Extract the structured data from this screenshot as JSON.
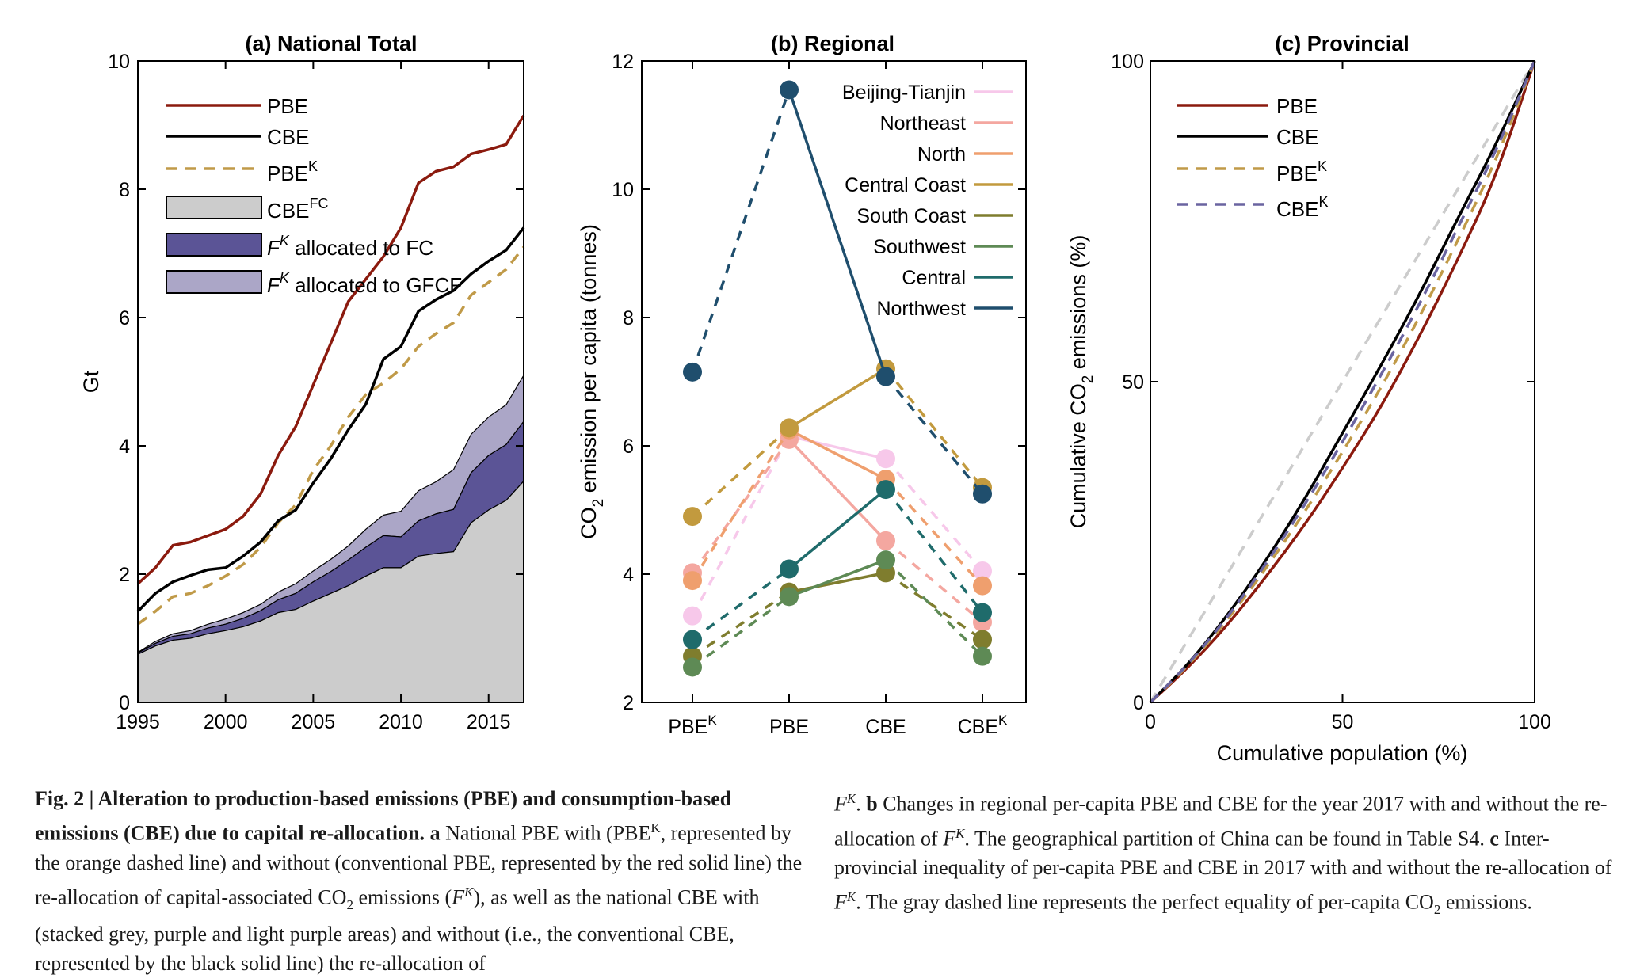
{
  "colors": {
    "pbe": "#8b1a0e",
    "cbe": "#000000",
    "pbek": "#c09a48",
    "cbefc": "#cccccc",
    "fk_fc": "#5b5496",
    "fk_gfcf": "#aba6c7",
    "cbek": "#6a64a0",
    "equality": "#cccccc"
  },
  "panel_a": {
    "title": "(a) National Total",
    "ylabel": "Gt",
    "legend": {
      "pbe": "PBE",
      "cbe": "CBE",
      "pbek": "PBE",
      "pbek_sup": "K",
      "cbefc": "CBE",
      "cbefc_sup": "FC",
      "fk_fc_f": "F",
      "fk_fc_sup": "K",
      "fk_fc_text": " allocated to FC",
      "fk_gfcf_f": "F",
      "fk_gfcf_sup": "K",
      "fk_gfcf_text": " allocated to GFCF"
    }
  },
  "panel_b": {
    "title": "(b) Regional",
    "ylabel_pre": "CO",
    "ylabel_sub": "2",
    "ylabel_post": " emission per capita (tonnes)"
  },
  "panel_c": {
    "title": "(c) Provincial",
    "xlabel": "Cumulative population (%)",
    "ylabel_pre": "Cumulative CO",
    "ylabel_sub": "2",
    "ylabel_post": " emissions (%)",
    "legend": {
      "pbe": "PBE",
      "cbe": "CBE",
      "pbek": "PBE",
      "pbek_sup": "K",
      "cbek": "CBE",
      "cbek_sup": "K"
    }
  },
  "chart_data": [
    {
      "type": "area",
      "title": "(a) National Total",
      "xlabel": "",
      "ylabel": "Gt",
      "xlim": [
        1995,
        2017
      ],
      "ylim": [
        0,
        10
      ],
      "xticks": [
        1995,
        2000,
        2005,
        2010,
        2015
      ],
      "yticks": [
        0,
        2,
        4,
        6,
        8,
        10
      ],
      "x": [
        1995,
        1996,
        1997,
        1998,
        1999,
        2000,
        2001,
        2002,
        2003,
        2004,
        2005,
        2006,
        2007,
        2008,
        2009,
        2010,
        2011,
        2012,
        2013,
        2014,
        2015,
        2016,
        2017
      ],
      "series": [
        {
          "name": "PBE",
          "style": "line",
          "values": [
            1.85,
            2.1,
            2.45,
            2.5,
            2.6,
            2.7,
            2.9,
            3.25,
            3.85,
            4.3,
            4.95,
            5.6,
            6.25,
            6.6,
            6.95,
            7.4,
            8.1,
            8.28,
            8.35,
            8.55,
            8.62,
            8.7,
            9.15
          ]
        },
        {
          "name": "CBE",
          "style": "line",
          "values": [
            1.42,
            1.7,
            1.88,
            1.98,
            2.07,
            2.1,
            2.28,
            2.5,
            2.83,
            3.0,
            3.42,
            3.8,
            4.25,
            4.65,
            5.35,
            5.55,
            6.1,
            6.28,
            6.42,
            6.68,
            6.88,
            7.05,
            7.4
          ]
        },
        {
          "name": "PBE^K",
          "style": "dashed",
          "values": [
            1.22,
            1.42,
            1.65,
            1.7,
            1.82,
            1.97,
            2.15,
            2.42,
            2.8,
            3.08,
            3.62,
            4.0,
            4.45,
            4.8,
            4.98,
            5.2,
            5.55,
            5.75,
            5.92,
            6.35,
            6.55,
            6.75,
            7.1
          ]
        },
        {
          "name": "CBE^FC",
          "style": "area",
          "values": [
            0.75,
            0.88,
            0.97,
            1.0,
            1.07,
            1.12,
            1.18,
            1.27,
            1.4,
            1.45,
            1.58,
            1.7,
            1.82,
            1.97,
            2.1,
            2.1,
            2.28,
            2.32,
            2.35,
            2.8,
            3.0,
            3.15,
            3.45
          ]
        },
        {
          "name": "F^K allocated to FC",
          "style": "area",
          "values": [
            0.02,
            0.04,
            0.06,
            0.07,
            0.09,
            0.1,
            0.13,
            0.16,
            0.2,
            0.25,
            0.3,
            0.34,
            0.4,
            0.45,
            0.5,
            0.48,
            0.55,
            0.62,
            0.66,
            0.78,
            0.85,
            0.87,
            0.93
          ]
        },
        {
          "name": "F^K allocated to GFCF",
          "style": "area",
          "values": [
            0.01,
            0.03,
            0.04,
            0.05,
            0.06,
            0.08,
            0.09,
            0.1,
            0.12,
            0.15,
            0.17,
            0.19,
            0.22,
            0.28,
            0.32,
            0.4,
            0.47,
            0.5,
            0.62,
            0.6,
            0.6,
            0.62,
            0.72
          ]
        }
      ]
    },
    {
      "type": "line",
      "title": "(b) Regional",
      "ylabel": "CO2 emission per capita (tonnes)",
      "categories": [
        "PBE",
        "PBE",
        "CBE",
        "CBE"
      ],
      "category_sups": [
        "K",
        "",
        "",
        "K"
      ],
      "ylim": [
        2,
        12
      ],
      "yticks": [
        2,
        4,
        6,
        8,
        10,
        12
      ],
      "segment_styles": [
        "dashed",
        "solid",
        "dashed"
      ],
      "series": [
        {
          "name": "Beijing-Tianjin",
          "color": "#f7c8ea",
          "values": [
            3.35,
            6.15,
            5.8,
            4.05
          ]
        },
        {
          "name": "Northeast",
          "color": "#f4a7a0",
          "values": [
            4.02,
            6.1,
            4.52,
            3.25
          ]
        },
        {
          "name": "North",
          "color": "#ef9f6e",
          "values": [
            3.9,
            6.25,
            5.48,
            3.82
          ]
        },
        {
          "name": "Central Coast",
          "color": "#c29a3e",
          "values": [
            4.9,
            6.28,
            7.2,
            5.35
          ]
        },
        {
          "name": "South Coast",
          "color": "#7f7d2e",
          "values": [
            2.72,
            3.72,
            4.02,
            2.98
          ]
        },
        {
          "name": "Southwest",
          "color": "#5e8a55",
          "values": [
            2.55,
            3.65,
            4.22,
            2.72
          ]
        },
        {
          "name": "Central",
          "color": "#1f6b6b",
          "values": [
            2.98,
            4.08,
            5.32,
            3.4
          ]
        },
        {
          "name": "Northwest",
          "color": "#1f4e6d",
          "values": [
            7.15,
            11.55,
            7.08,
            5.25
          ]
        }
      ]
    },
    {
      "type": "line",
      "title": "(c) Provincial",
      "xlabel": "Cumulative population (%)",
      "ylabel": "Cumulative CO2 emissions (%)",
      "xlim": [
        0,
        100
      ],
      "ylim": [
        0,
        100
      ],
      "xticks": [
        0,
        50,
        100
      ],
      "yticks": [
        0,
        50,
        100
      ],
      "x": [
        0,
        10,
        20,
        30,
        40,
        50,
        60,
        70,
        80,
        90,
        100
      ],
      "series": [
        {
          "name": "Equality",
          "style": "dashed",
          "values": [
            0,
            10,
            20,
            30,
            40,
            50,
            60,
            70,
            80,
            90,
            100
          ]
        },
        {
          "name": "PBE",
          "style": "solid",
          "values": [
            0,
            5.5,
            12,
            19.5,
            27.5,
            36.5,
            46,
            57,
            69,
            82,
            100
          ]
        },
        {
          "name": "CBE",
          "style": "solid",
          "values": [
            0,
            6,
            13.5,
            22,
            31.5,
            42,
            52.5,
            63.5,
            75.5,
            87,
            100
          ]
        },
        {
          "name": "PBE^K",
          "style": "dashed",
          "values": [
            0,
            5.8,
            12.8,
            20.8,
            29.5,
            39,
            49,
            60,
            72,
            84.5,
            100
          ]
        },
        {
          "name": "CBE^K",
          "style": "dashed",
          "values": [
            0,
            6,
            13.2,
            21.5,
            30.6,
            40.6,
            51,
            62,
            74,
            86,
            100
          ]
        }
      ]
    }
  ],
  "caption": {
    "fig_label": "Fig. 2 | Alteration to production-based emissions (PBE) and consumption-based emissions (CBE) due to capital re-allocation.",
    "a_label": "a",
    "a_text_1": " National PBE with (PBE",
    "a_sup_1": "K",
    "a_text_2": ", represented by the orange dashed line) and without (conventional PBE, represented by the red solid line) the re-allocation of capital-associated CO",
    "a_sub_1": "2",
    "a_text_3": " emissions (",
    "a_f": "F",
    "a_sup_2": "K",
    "a_text_4": "), as well as the national CBE with (stacked grey, purple and light purple areas) and without (i.e., the conventional CBE, represented by the black solid line) the re-allocation of ",
    "a_f2": "F",
    "a_sup_3": "K",
    "a_text_5": ". ",
    "b_label": "b",
    "b_text_1": " Changes in regional per-capita PBE and CBE for the year 2017 with and without the re-allocation of ",
    "b_f": "F",
    "b_sup": "K",
    "b_text_2": ". The geographical partition of China can be found in Table S4. ",
    "c_label": "c",
    "c_text_1": " Inter-provincial inequality of per-capita PBE and CBE in 2017 with and without the re-allocation of ",
    "c_f": "F",
    "c_sup": "K",
    "c_text_2": ". The gray dashed line represents the perfect equality of per-capita CO",
    "c_sub": "2",
    "c_text_3": " emissions."
  }
}
